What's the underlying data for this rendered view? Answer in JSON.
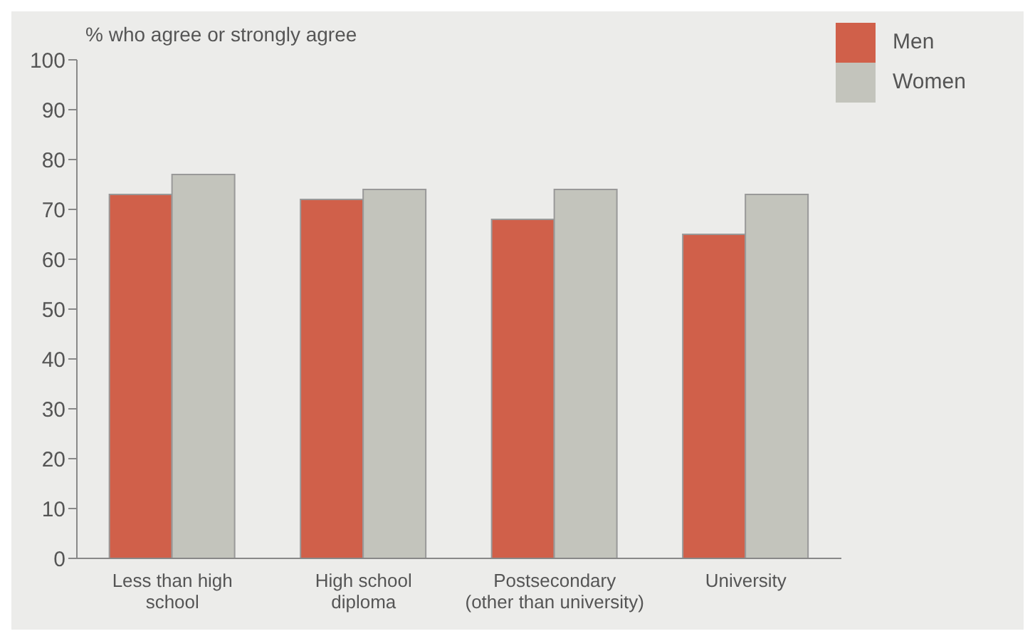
{
  "chart_data": {
    "type": "bar",
    "ylabel": "% who agree or strongly agree",
    "categories": [
      "Less than high school",
      "High school diploma",
      "Postsecondary (other than university)",
      "University"
    ],
    "series": [
      {
        "name": "Men",
        "color": "#d0604a",
        "values": [
          73,
          72,
          68,
          65
        ]
      },
      {
        "name": "Women",
        "color": "#c3c4bc",
        "values": [
          77,
          74,
          74,
          73
        ]
      }
    ],
    "ylim": [
      0,
      100
    ],
    "yticks": [
      0,
      10,
      20,
      30,
      40,
      50,
      60,
      70,
      80,
      90,
      100
    ],
    "grid": false,
    "legend": "top right"
  }
}
